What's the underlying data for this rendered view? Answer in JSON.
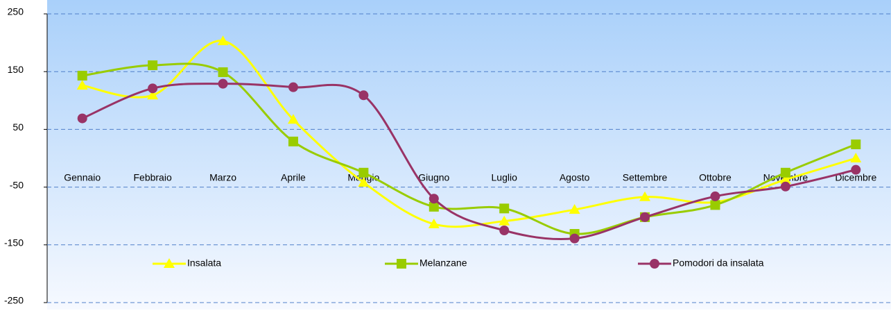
{
  "chart_data": {
    "type": "line",
    "categories": [
      "Gennaio",
      "Febbraio",
      "Marzo",
      "Aprile",
      "Maggio",
      "Giugno",
      "Luglio",
      "Agosto",
      "Settembre",
      "Ottobre",
      "Novembre",
      "Dicembre"
    ],
    "series": [
      {
        "name": "Insalata",
        "color": "#ffff00",
        "marker": "triangle",
        "values": [
          126,
          109,
          203,
          67,
          -42,
          -114,
          -109,
          -89,
          -67,
          -76,
          -37,
          0
        ]
      },
      {
        "name": "Melanzane",
        "color": "#99cc00",
        "marker": "square",
        "values": [
          143,
          161,
          149,
          29,
          -25,
          -84,
          -87,
          -131,
          -102,
          -81,
          -25,
          24
        ]
      },
      {
        "name": "Pomodori da insalata",
        "color": "#993366",
        "marker": "circle",
        "values": [
          69,
          121,
          129,
          123,
          109,
          -70,
          -125,
          -139,
          -102,
          -66,
          -49,
          -20
        ]
      }
    ],
    "ylim": [
      -250,
      250
    ],
    "yticks": [
      -250,
      -150,
      -50,
      50,
      150,
      250
    ],
    "grid": true,
    "smooth": true,
    "legend": "bottom"
  }
}
